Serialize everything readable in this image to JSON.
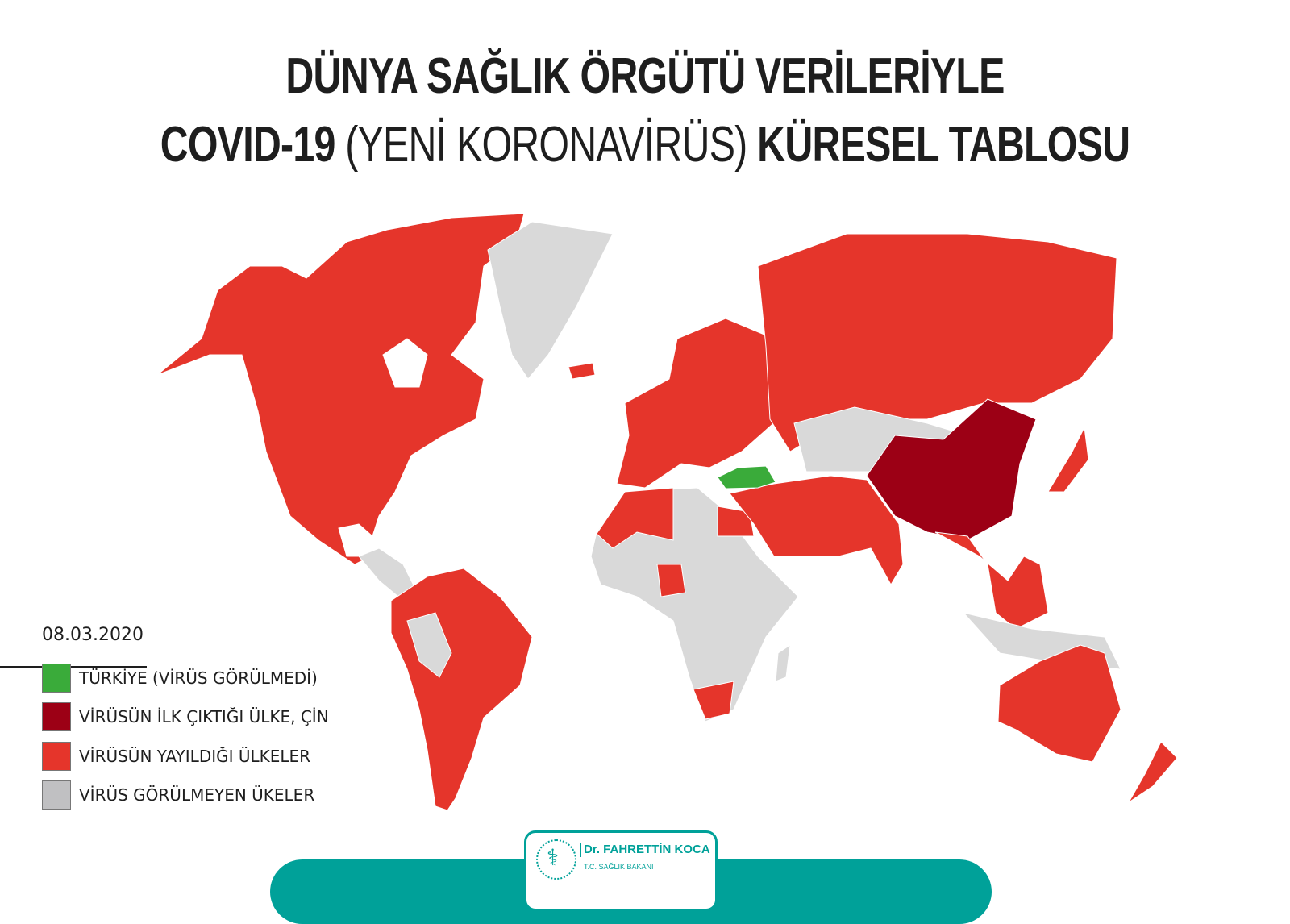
{
  "title": {
    "line1": "DÜNYA SAĞLIK ÖRGÜTÜ VERİLERİYLE",
    "line2_a": "COVID-19",
    "line2_b": "(YENİ KORONAVİRÜS)",
    "line2_c": "KÜRESEL TABLOSU"
  },
  "date": "08.03.2020",
  "colors": {
    "turkey": "#3aab3a",
    "china": "#9c0015",
    "spread": "#e5352b",
    "none": "#d9d9d9",
    "teal": "#00a199"
  },
  "legend": [
    {
      "label": "TÜRKİYE (VİRÜS GÖRÜLMEDİ)",
      "color": "#3aab3a"
    },
    {
      "label": "VİRÜSÜN İLK ÇIKTIĞI ÜLKE, ÇİN",
      "color": "#9c0015"
    },
    {
      "label": "VİRÜSÜN YAYILDIĞI ÜLKELER",
      "color": "#e5352b"
    },
    {
      "label": "VİRÜS GÖRÜLMEYEN ÜKELER",
      "color": "#c0c0c2"
    }
  ],
  "footer": {
    "name": "Dr. FAHRETTİN KOCA",
    "role": "T.C. SAĞLIK BAKANI"
  }
}
